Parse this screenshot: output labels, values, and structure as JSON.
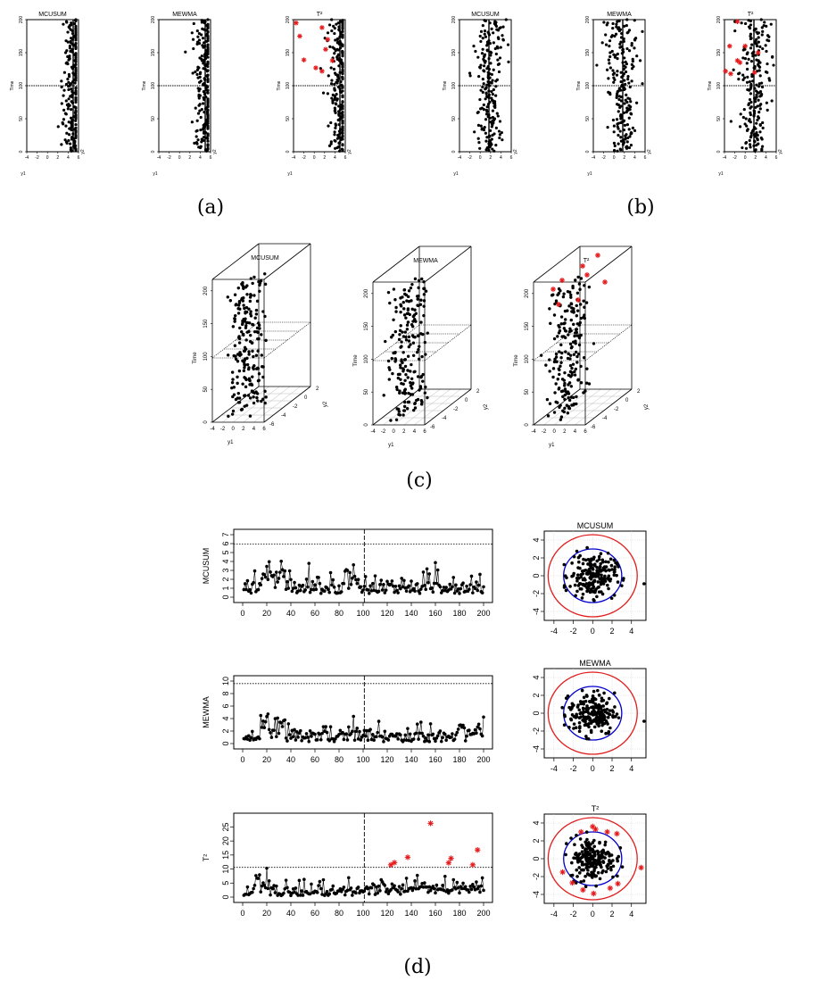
{
  "panel_labels": [
    "(a)",
    "(b)",
    "(c)",
    "(d)"
  ],
  "chart_data": [
    {
      "id": "a-mcusum",
      "type": "scatter",
      "title": "MCUSUM",
      "xlabel": "y1",
      "ylabel": "Time",
      "zlabel": "y2",
      "xticks": [
        "-4",
        "-2",
        "0",
        "2",
        "4",
        "6"
      ],
      "yticks": [
        "0",
        "50",
        "100",
        "150",
        "200"
      ],
      "xlim": [
        -4,
        6
      ],
      "ylim": [
        0,
        200
      ],
      "change_time": 100
    },
    {
      "id": "a-mewma",
      "type": "scatter",
      "title": "MEWMA",
      "xlabel": "y1",
      "ylabel": "Time",
      "zlabel": "y2",
      "xticks": [
        "-4",
        "-2",
        "0",
        "2",
        "4",
        "6"
      ],
      "yticks": [
        "0",
        "50",
        "100",
        "150",
        "200"
      ],
      "xlim": [
        -4,
        6
      ],
      "ylim": [
        0,
        200
      ],
      "change_time": 100
    },
    {
      "id": "a-t2",
      "type": "scatter",
      "title": "T²",
      "xlabel": "y1",
      "ylabel": "Time",
      "zlabel": "y2",
      "xticks": [
        "-4",
        "-2",
        "0",
        "2",
        "4",
        "6"
      ],
      "yticks": [
        "0",
        "50",
        "100",
        "150",
        "200"
      ],
      "xlim": [
        -4,
        6
      ],
      "ylim": [
        0,
        200
      ],
      "change_time": 100,
      "signals": [
        {
          "x": -3.5,
          "y": 195
        },
        {
          "x": -2.8,
          "y": 175
        },
        {
          "x": 1.5,
          "y": 188
        },
        {
          "x": 2.6,
          "y": 170
        },
        {
          "x": 2.2,
          "y": 155
        },
        {
          "x": 3.5,
          "y": 138
        },
        {
          "x": -2.0,
          "y": 139
        },
        {
          "x": 0.3,
          "y": 127
        },
        {
          "x": 1.5,
          "y": 122
        }
      ]
    },
    {
      "id": "b-mcusum",
      "type": "scatter",
      "title": "MCUSUM",
      "xlabel": "y1",
      "ylabel": "Time",
      "zlabel": "y2",
      "xticks": [
        "-4",
        "-2",
        "0",
        "2",
        "4",
        "6"
      ],
      "yticks": [
        "0",
        "50",
        "100",
        "150",
        "200"
      ],
      "xlim": [
        -4,
        6
      ],
      "ylim": [
        0,
        200
      ],
      "change_time": 100
    },
    {
      "id": "b-mewma",
      "type": "scatter",
      "title": "MEWMA",
      "xlabel": "y1",
      "ylabel": "Time",
      "zlabel": "y2",
      "xticks": [
        "-4",
        "-2",
        "0",
        "2",
        "4",
        "6"
      ],
      "yticks": [
        "0",
        "50",
        "100",
        "150",
        "200"
      ],
      "xlim": [
        -4,
        6
      ],
      "ylim": [
        0,
        200
      ],
      "change_time": 100
    },
    {
      "id": "b-t2",
      "type": "scatter",
      "title": "T²",
      "xlabel": "y1",
      "ylabel": "Time",
      "zlabel": "y2",
      "xticks": [
        "-4",
        "-2",
        "0",
        "2",
        "4",
        "6"
      ],
      "yticks": [
        "0",
        "50",
        "100",
        "150",
        "200"
      ],
      "xlim": [
        -4,
        6
      ],
      "ylim": [
        0,
        200
      ],
      "change_time": 100,
      "signals": [
        {
          "x": -1.5,
          "y": 197
        },
        {
          "x": -3.0,
          "y": 160
        },
        {
          "x": 0.0,
          "y": 160
        },
        {
          "x": 2.5,
          "y": 150
        },
        {
          "x": -1.5,
          "y": 138
        },
        {
          "x": -1.0,
          "y": 135
        },
        {
          "x": -2.8,
          "y": 118
        },
        {
          "x": 1.8,
          "y": 120
        },
        {
          "x": -3.8,
          "y": 122
        }
      ]
    },
    {
      "id": "c-mcusum",
      "type": "scatter",
      "title": "MCUSUM",
      "xlabel": "y1",
      "ylabel": "Time",
      "zlabel": "y2",
      "xticks": [
        "-4",
        "-2",
        "0",
        "2",
        "4",
        "6"
      ],
      "yticks": [
        "0",
        "50",
        "100",
        "150",
        "200"
      ],
      "zticks": [
        "-6",
        "-4",
        "-2",
        "0",
        "2"
      ]
    },
    {
      "id": "c-mewma",
      "type": "scatter",
      "title": "MEWMA",
      "xlabel": "y1",
      "ylabel": "Time",
      "zlabel": "y2",
      "xticks": [
        "-4",
        "-2",
        "0",
        "2",
        "4",
        "6"
      ],
      "yticks": [
        "0",
        "50",
        "100",
        "150",
        "200"
      ],
      "zticks": [
        "-6",
        "-4",
        "-2",
        "0",
        "2"
      ]
    },
    {
      "id": "c-t2",
      "type": "scatter",
      "title": "T²",
      "xlabel": "y1",
      "ylabel": "Time",
      "zlabel": "y2",
      "xticks": [
        "-4",
        "-2",
        "0",
        "2",
        "4",
        "6"
      ],
      "yticks": [
        "0",
        "50",
        "100",
        "150",
        "200"
      ],
      "zticks": [
        "-6",
        "-4",
        "-2",
        "0",
        "2"
      ]
    },
    {
      "id": "d-mcusum-chart",
      "type": "line",
      "ylabel": "MCUSUM",
      "xlim": [
        0,
        200
      ],
      "ylim": [
        0,
        7
      ],
      "xticks": [
        "0",
        "20",
        "40",
        "60",
        "80",
        "100",
        "120",
        "140",
        "160",
        "180",
        "200"
      ],
      "yticks": [
        "0",
        "1",
        "2",
        "3",
        "4",
        "5",
        "6",
        "7"
      ],
      "control_limit": 5.95,
      "change_time": 101
    },
    {
      "id": "d-mewma-chart",
      "type": "line",
      "ylabel": "MEWMA",
      "xlim": [
        0,
        200
      ],
      "ylim": [
        0,
        10
      ],
      "xticks": [
        "0",
        "20",
        "40",
        "60",
        "80",
        "100",
        "120",
        "140",
        "160",
        "180",
        "200"
      ],
      "yticks": [
        "0",
        "2",
        "4",
        "6",
        "8",
        "10"
      ],
      "control_limit": 9.6,
      "change_time": 101
    },
    {
      "id": "d-t2-chart",
      "type": "line",
      "ylabel": "T²",
      "xlim": [
        0,
        200
      ],
      "ylim": [
        0,
        28
      ],
      "xticks": [
        "0",
        "20",
        "40",
        "60",
        "80",
        "100",
        "120",
        "140",
        "160",
        "180",
        "200"
      ],
      "yticks": [
        "0",
        "5",
        "10",
        "15",
        "20",
        "25"
      ],
      "control_limit": 10.6,
      "change_time": 101,
      "signals": [
        {
          "x": 123,
          "y": 11.5
        },
        {
          "x": 126,
          "y": 12.3
        },
        {
          "x": 137,
          "y": 14.2
        },
        {
          "x": 156,
          "y": 26.3
        },
        {
          "x": 171,
          "y": 12.2
        },
        {
          "x": 173,
          "y": 13.8
        },
        {
          "x": 191,
          "y": 11.5
        },
        {
          "x": 195,
          "y": 16.8
        }
      ]
    },
    {
      "id": "d-mcusum-ellipse",
      "type": "scatter",
      "title": "MCUSUM",
      "xlim": [
        -5,
        5.5
      ],
      "ylim": [
        -5,
        5
      ],
      "xticks": [
        "-4",
        "-2",
        "0",
        "2",
        "4"
      ],
      "yticks": [
        "-4",
        "-2",
        "0",
        "2",
        "4"
      ],
      "inner_radius": 3.0,
      "outer_radius": 4.6,
      "inner_color": "#0000cc",
      "outer_color": "#e02020"
    },
    {
      "id": "d-mewma-ellipse",
      "type": "scatter",
      "title": "MEWMA",
      "xlim": [
        -5,
        5.5
      ],
      "ylim": [
        -5,
        5
      ],
      "xticks": [
        "-4",
        "-2",
        "0",
        "2",
        "4"
      ],
      "yticks": [
        "-4",
        "-2",
        "0",
        "2",
        "4"
      ],
      "inner_radius": 3.0,
      "outer_radius": 4.6,
      "inner_color": "#0000cc",
      "outer_color": "#e02020"
    },
    {
      "id": "d-t2-ellipse",
      "type": "scatter",
      "title": "T²",
      "xlim": [
        -5,
        5.5
      ],
      "ylim": [
        -5,
        5
      ],
      "xticks": [
        "-4",
        "-2",
        "0",
        "2",
        "4"
      ],
      "yticks": [
        "-4",
        "-2",
        "0",
        "2",
        "4"
      ],
      "inner_radius": 3.0,
      "outer_radius": 4.6,
      "inner_color": "#0000cc",
      "outer_color": "#e02020",
      "signals": [
        {
          "x": -1.2,
          "y": 3.0
        },
        {
          "x": 0.0,
          "y": 3.6
        },
        {
          "x": 0.3,
          "y": 3.3
        },
        {
          "x": 1.5,
          "y": 3.0
        },
        {
          "x": 2.5,
          "y": 2.8
        },
        {
          "x": -3.1,
          "y": -1.5
        },
        {
          "x": -2.1,
          "y": -2.7
        },
        {
          "x": -1.0,
          "y": -3.5
        },
        {
          "x": 0.1,
          "y": -3.9
        },
        {
          "x": 1.8,
          "y": -3.3
        },
        {
          "x": 2.6,
          "y": -2.8
        },
        {
          "x": 5.0,
          "y": -1.0
        }
      ]
    }
  ],
  "colors": {
    "signal": "#e41a1c",
    "axis": "#000000",
    "inner": "#0000cc",
    "outer": "#e02020",
    "grid": "#cccccc"
  }
}
